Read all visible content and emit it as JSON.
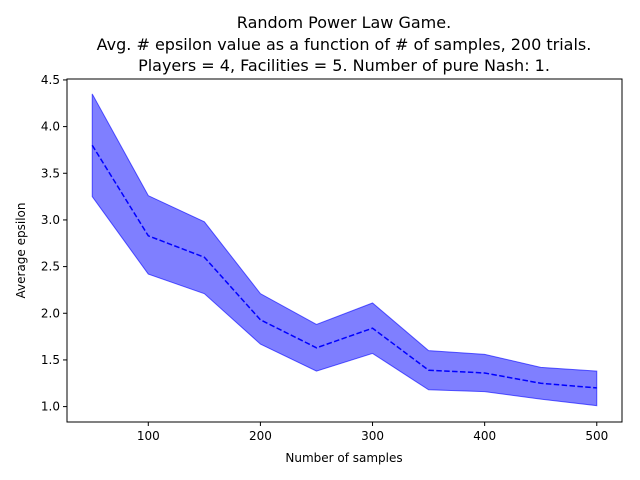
{
  "chart_data": {
    "type": "line",
    "title_lines": [
      "Random Power Law Game.",
      "Avg. # epsilon value as a function of # of samples, 200 trials.",
      "Players = 4, Facilities = 5. Number of pure Nash: 1."
    ],
    "xlabel": "Number of samples",
    "ylabel": "Average epsilon",
    "xlim": [
      27.5,
      522.5
    ],
    "ylim": [
      0.835,
      4.51
    ],
    "xticks": [
      100,
      200,
      300,
      400,
      500
    ],
    "xtick_labels": [
      "100",
      "200",
      "300",
      "400",
      "500"
    ],
    "yticks": [
      1.0,
      1.5,
      2.0,
      2.5,
      3.0,
      3.5,
      4.0,
      4.5
    ],
    "ytick_labels": [
      "1.0",
      "1.5",
      "2.0",
      "2.5",
      "3.0",
      "3.5",
      "4.0",
      "4.5"
    ],
    "grid": false,
    "series": [
      {
        "x": [
          50,
          100,
          150,
          200,
          250,
          300,
          350,
          400,
          450,
          500
        ],
        "values": [
          3.8,
          2.83,
          2.6,
          1.93,
          1.63,
          1.84,
          1.39,
          1.36,
          1.25,
          1.2
        ],
        "lower": [
          3.25,
          2.42,
          2.21,
          1.67,
          1.38,
          1.57,
          1.18,
          1.16,
          1.08,
          1.01
        ],
        "upper": [
          4.35,
          3.26,
          2.98,
          2.21,
          1.88,
          2.11,
          1.6,
          1.56,
          1.42,
          1.38
        ],
        "line_color": "#0000ff",
        "band_color": "#0000ff",
        "line_style": "dashed"
      }
    ]
  }
}
